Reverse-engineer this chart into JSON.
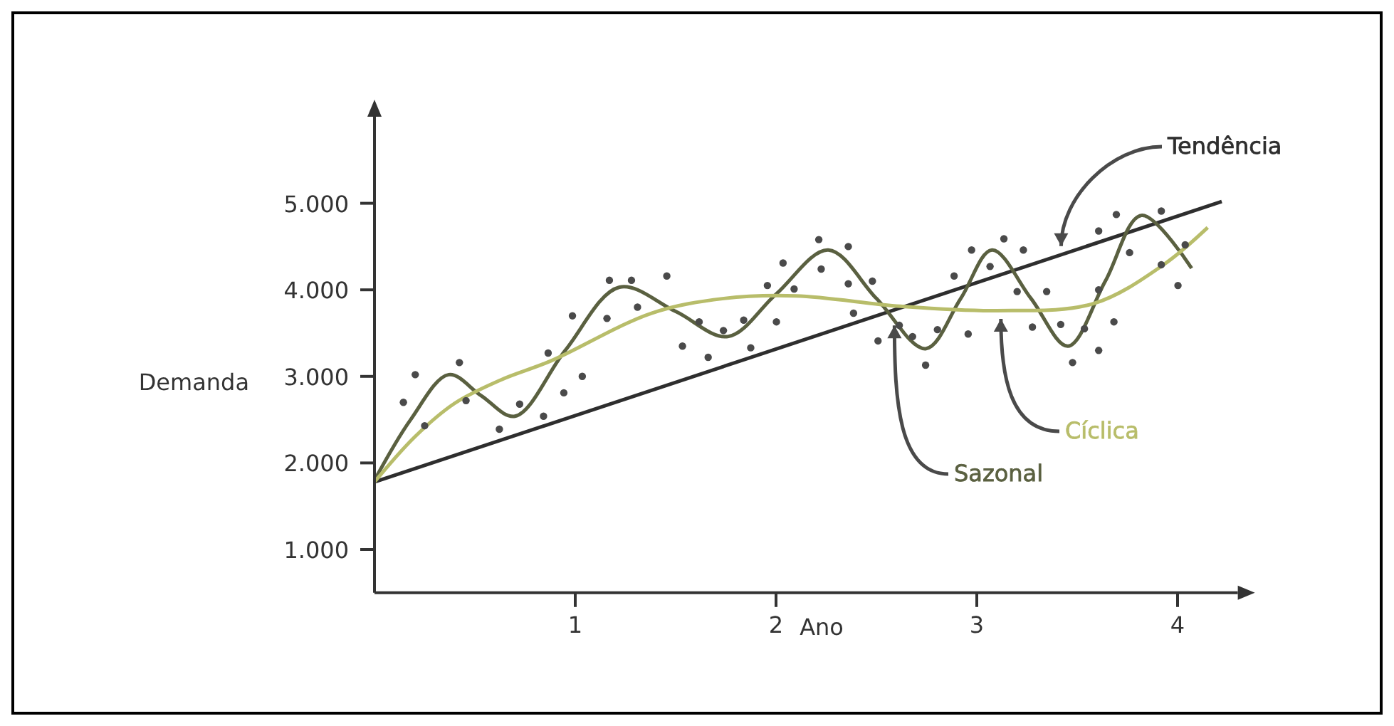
{
  "chart_data": {
    "type": "line",
    "xlabel": "Ano",
    "ylabel": "Demanda",
    "xlim": [
      0,
      4.3
    ],
    "ylim": [
      500,
      6000
    ],
    "xticks": [
      1,
      2,
      3,
      4
    ],
    "yticks": [
      {
        "value": 1000,
        "label": "1.000"
      },
      {
        "value": 2000,
        "label": "2.000"
      },
      {
        "value": 3000,
        "label": "3.000"
      },
      {
        "value": 4000,
        "label": "4.000"
      },
      {
        "value": 5000,
        "label": "5.000"
      }
    ],
    "grid": false,
    "line_style": "solid",
    "series": [
      {
        "type": "scatter",
        "marker": "circle",
        "color": "#4a4a4a",
        "x": [
          0.144,
          0.203,
          0.25,
          0.423,
          0.456,
          0.622,
          0.723,
          0.842,
          0.865,
          0.943,
          0.986,
          1.035,
          1.158,
          1.17,
          1.28,
          1.31,
          1.456,
          1.534,
          1.617,
          1.662,
          1.738,
          1.839,
          1.874,
          1.957,
          2.002,
          2.035,
          2.09,
          2.213,
          2.225,
          2.36,
          2.36,
          2.386,
          2.48,
          2.508,
          2.614,
          2.68,
          2.745,
          2.804,
          2.887,
          2.957,
          2.974,
          3.066,
          3.135,
          3.201,
          3.232,
          3.277,
          3.348,
          3.418,
          3.477,
          3.536,
          3.607,
          3.607,
          3.607,
          3.683,
          3.695,
          3.761,
          3.919,
          3.919,
          4.002,
          4.038
        ],
        "values": [
          2700,
          3020,
          2430,
          3160,
          2720,
          2390,
          2680,
          2540,
          3270,
          2810,
          3700,
          3000,
          3670,
          4110,
          4110,
          3800,
          4160,
          3350,
          3630,
          3220,
          3530,
          3650,
          3330,
          4050,
          3630,
          4310,
          4010,
          4580,
          4240,
          4500,
          4070,
          3730,
          4100,
          3410,
          3590,
          3460,
          3130,
          3540,
          4160,
          3490,
          4460,
          4270,
          4590,
          3980,
          4460,
          3570,
          3980,
          3600,
          3160,
          3550,
          3300,
          4000,
          4680,
          3630,
          4870,
          4430,
          4910,
          4290,
          4050,
          4520
        ]
      },
      {
        "name": "Tendência",
        "color": "#2e2e2e",
        "x": [
          0,
          4.22
        ],
        "values": [
          1780,
          5020
        ]
      },
      {
        "name": "Sazonal",
        "color": "#5a6040",
        "x": [
          0,
          0.18,
          0.37,
          0.53,
          0.7,
          0.95,
          1.22,
          1.5,
          1.76,
          2.0,
          2.26,
          2.5,
          2.745,
          2.92,
          3.076,
          3.27,
          3.454,
          3.64,
          3.82,
          4.07
        ],
        "values": [
          1800,
          2500,
          3020,
          2780,
          2540,
          3300,
          4030,
          3750,
          3460,
          3950,
          4460,
          3900,
          3320,
          3900,
          4460,
          3900,
          3350,
          4100,
          4860,
          4250
        ]
      },
      {
        "name": "Cíclica",
        "color": "#b8bd6a",
        "x": [
          0,
          0.2,
          0.4,
          0.63,
          0.88,
          1.38,
          1.74,
          2.1,
          2.62,
          3.1,
          3.58,
          3.93,
          4.15
        ],
        "values": [
          1780,
          2300,
          2690,
          2960,
          3180,
          3730,
          3900,
          3930,
          3810,
          3760,
          3840,
          4290,
          4720
        ]
      }
    ]
  }
}
